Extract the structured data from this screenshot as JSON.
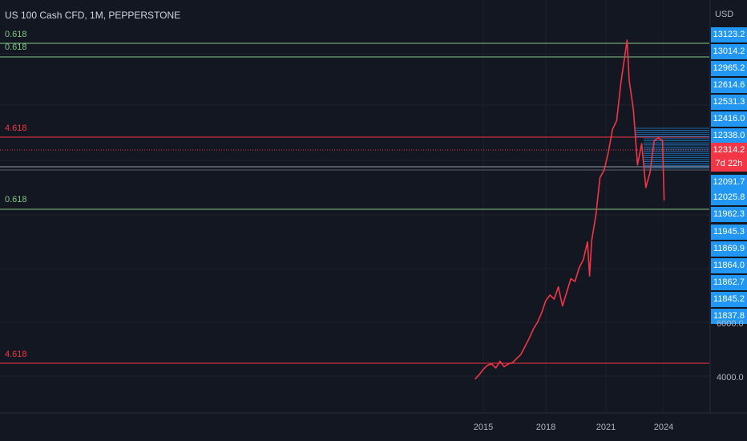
{
  "header": {
    "title": "US 100 Cash CFD, 1M, PEPPERSTONE",
    "currency": "USD"
  },
  "colors": {
    "background": "#131722",
    "price_line": "#f23645",
    "fib_green": "#81c784",
    "fib_red": "#f23645",
    "tag_blue": "#2196f3",
    "tag_red": "#f23645"
  },
  "chart_data": {
    "type": "line",
    "title": "US 100 Cash CFD, 1M, PEPPERSTONE",
    "xlabel": "",
    "ylabel": "",
    "x_ticks": [
      "2015",
      "2018",
      "2021",
      "2024"
    ],
    "y_ticks": [
      "4000.0",
      "6000.0"
    ],
    "series": [
      {
        "x": [
          2014.6,
          2014.8,
          2015.0,
          2015.2,
          2015.4,
          2015.6,
          2015.8,
          2016.0,
          2016.2,
          2016.4,
          2016.6,
          2016.8,
          2017.0,
          2017.2,
          2017.4,
          2017.6,
          2017.8,
          2018.0,
          2018.2,
          2018.4,
          2018.6,
          2018.8,
          2019.0,
          2019.2,
          2019.4,
          2019.6,
          2019.8,
          2020.0,
          2020.1,
          2020.2,
          2020.4,
          2020.6,
          2020.8,
          2021.0,
          2021.2,
          2021.4,
          2021.6,
          2021.8,
          2021.9,
          2022.0,
          2022.2,
          2022.4,
          2022.6,
          2022.8,
          2023.0,
          2023.2,
          2023.4,
          2023.6
        ],
        "values": [
          3850,
          4050,
          4250,
          4400,
          4450,
          4300,
          4550,
          4350,
          4450,
          4500,
          4650,
          4800,
          5100,
          5400,
          5750,
          6000,
          6350,
          6800,
          7000,
          6850,
          7300,
          6600,
          7100,
          7600,
          7500,
          8000,
          8300,
          8950,
          7700,
          9000,
          10000,
          11500,
          11800,
          12500,
          13300,
          13600,
          14900,
          15900,
          16400,
          15000,
          14000,
          12000,
          12800,
          11100,
          11700,
          12900,
          13000,
          12900
        ]
      }
    ],
    "price_tags": [
      "13123.2",
      "13014.2",
      "12965.2",
      "12614.6",
      "12531.3",
      "12416.0",
      "12338.0",
      "12314.2",
      "7d 22h",
      "12091.7",
      "12025.8",
      "11962.3",
      "11945.3",
      "11869.9",
      "11864.0",
      "11862.7",
      "11845.2",
      "11837.8"
    ],
    "fib_levels": [
      {
        "label": "0.618",
        "color": "#81c784"
      },
      {
        "label": "0.618",
        "color": "#81c784"
      },
      {
        "label": "4.618",
        "color": "#f23645"
      },
      {
        "label": "0.618",
        "color": "#81c784"
      },
      {
        "label": "4.618",
        "color": "#f23645"
      }
    ]
  }
}
